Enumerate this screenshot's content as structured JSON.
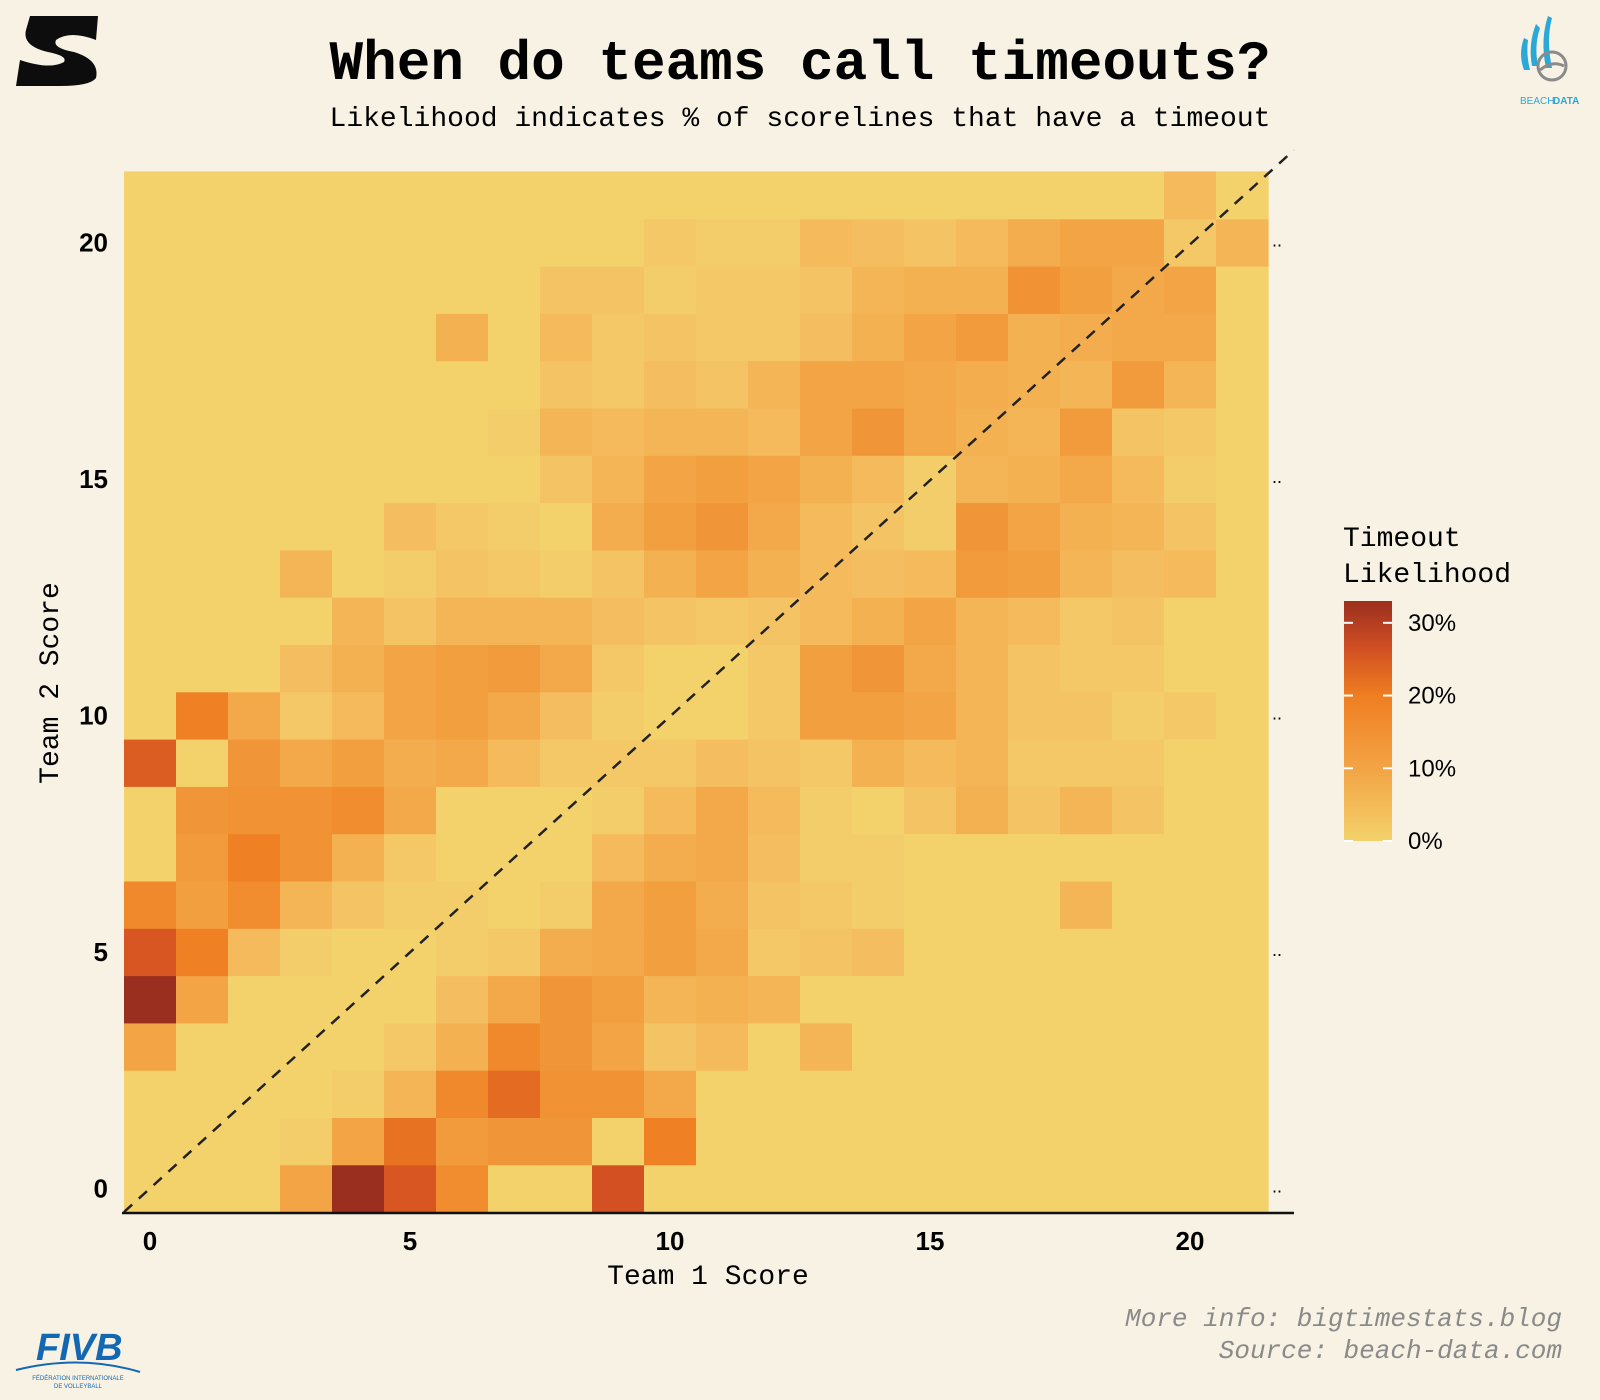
{
  "colors": {
    "background": "#f8f2e4",
    "scale_low": "#f3d26b",
    "scale_mid": "#ef7f22",
    "scale_high": "#9b2f1f",
    "text": "#111111",
    "caption": "#8a8a8a",
    "beach_data_blue": "#2aa8d8",
    "fivb_blue": "#1268b3"
  },
  "title": "When do teams call timeouts?",
  "subtitle": "Likelihood indicates % of scorelines that have a timeout",
  "logos": {
    "top_left": {
      "icon": "s-logo-icon"
    },
    "top_right": {
      "icon": "beach-data-logo-icon",
      "text_1": "BEACH",
      "text_2": "DATA"
    },
    "bottom_left": {
      "icon": "fivb-logo-icon",
      "text": "FIVB",
      "subtext_1": "FÉDÉRATION INTERNATIONALE",
      "subtext_2": "DE VOLLEYBALL"
    }
  },
  "caption": {
    "line1": "More info: bigtimestats.blog",
    "line2": "Source: beach-data.com"
  },
  "chart_data": {
    "type": "heatmap",
    "xlabel": "Team 1 Score",
    "ylabel": "Team 2 Score",
    "x_range": [
      0,
      21
    ],
    "y_range": [
      0,
      21
    ],
    "x_ticks": [
      0,
      5,
      10,
      15,
      20
    ],
    "y_ticks": [
      0,
      5,
      10,
      15,
      20
    ],
    "x_tick_labels": [
      "0",
      "5",
      "10",
      "15",
      "20"
    ],
    "y_tick_labels": [
      "0",
      "5",
      "10",
      "15",
      "20"
    ],
    "reference_line": "dashed diagonal y = x",
    "right_margin_marks": "..",
    "legend": {
      "title_line1": "Timeout",
      "title_line2": "Likelihood",
      "placement": "right",
      "range": [
        0,
        33
      ],
      "ticks": [
        0,
        10,
        20,
        30
      ],
      "tick_labels": [
        "0%",
        "10%",
        "20%",
        "30%"
      ]
    },
    "value_unit": "% of scorelines with a timeout",
    "rows_order": "row index = Team 2 Score (0..21), column index = Team 1 Score (0..21)",
    "values": [
      [
        0,
        0,
        0,
        10,
        33,
        24,
        15,
        0,
        0,
        25,
        0,
        0,
        0,
        0,
        0,
        0,
        0,
        0,
        0,
        0,
        0,
        0
      ],
      [
        0,
        0,
        0,
        1,
        10,
        20,
        12,
        13,
        13,
        0,
        18,
        0,
        0,
        0,
        0,
        0,
        0,
        0,
        0,
        0,
        0,
        0
      ],
      [
        0,
        0,
        0,
        0,
        1,
        6,
        16,
        21,
        14,
        14,
        9,
        0,
        0,
        0,
        0,
        0,
        0,
        0,
        0,
        0,
        0,
        0
      ],
      [
        10,
        0,
        0,
        0,
        0,
        2,
        7,
        16,
        13,
        10,
        3,
        5,
        0,
        6,
        0,
        0,
        0,
        0,
        0,
        0,
        0,
        0
      ],
      [
        33,
        10,
        0,
        0,
        0,
        0,
        4,
        9,
        13,
        11,
        6,
        7,
        6,
        0,
        0,
        0,
        0,
        0,
        0,
        0,
        0,
        0
      ],
      [
        24,
        18,
        5,
        1,
        0,
        0,
        1,
        2,
        8,
        9,
        11,
        9,
        2,
        3,
        4,
        0,
        0,
        0,
        0,
        0,
        0,
        0
      ],
      [
        16,
        11,
        15,
        6,
        3,
        1,
        1,
        0,
        1,
        9,
        11,
        8,
        3,
        2,
        1,
        0,
        0,
        0,
        6,
        0,
        0,
        0
      ],
      [
        0,
        12,
        18,
        14,
        7,
        2,
        0,
        0,
        0,
        5,
        8,
        9,
        4,
        1,
        1,
        0,
        0,
        0,
        0,
        0,
        0,
        0
      ],
      [
        0,
        13,
        14,
        14,
        15,
        9,
        0,
        0,
        0,
        1,
        5,
        9,
        5,
        1,
        0,
        3,
        7,
        3,
        6,
        3,
        0,
        0
      ],
      [
        23,
        0,
        13,
        9,
        11,
        8,
        9,
        5,
        2,
        2,
        2,
        4,
        3,
        2,
        7,
        5,
        6,
        2,
        2,
        2,
        0,
        0
      ],
      [
        0,
        18,
        9,
        2,
        5,
        10,
        11,
        9,
        4,
        1,
        0,
        0,
        2,
        11,
        11,
        10,
        6,
        3,
        3,
        1,
        2,
        0
      ],
      [
        0,
        0,
        0,
        4,
        7,
        10,
        11,
        12,
        9,
        2,
        0,
        0,
        2,
        11,
        13,
        9,
        6,
        3,
        2,
        2,
        0,
        0
      ],
      [
        0,
        0,
        0,
        0,
        6,
        3,
        6,
        6,
        6,
        4,
        3,
        2,
        3,
        5,
        7,
        10,
        6,
        5,
        2,
        3,
        0,
        0
      ],
      [
        0,
        0,
        0,
        6,
        0,
        1,
        3,
        2,
        1,
        3,
        7,
        10,
        7,
        5,
        4,
        5,
        12,
        11,
        6,
        4,
        5,
        0
      ],
      [
        0,
        0,
        0,
        0,
        0,
        4,
        2,
        1,
        0,
        8,
        11,
        13,
        9,
        5,
        3,
        1,
        13,
        10,
        7,
        6,
        3,
        0
      ],
      [
        0,
        0,
        0,
        0,
        0,
        0,
        0,
        0,
        3,
        6,
        10,
        11,
        10,
        7,
        5,
        1,
        6,
        7,
        9,
        5,
        1,
        0
      ],
      [
        0,
        0,
        0,
        0,
        0,
        0,
        0,
        1,
        6,
        5,
        6,
        6,
        5,
        10,
        13,
        9,
        7,
        6,
        12,
        3,
        2,
        0
      ],
      [
        0,
        0,
        0,
        0,
        0,
        0,
        0,
        0,
        3,
        2,
        4,
        3,
        6,
        10,
        10,
        9,
        8,
        7,
        6,
        12,
        6,
        0
      ],
      [
        0,
        0,
        0,
        0,
        0,
        0,
        7,
        0,
        5,
        2,
        3,
        2,
        2,
        4,
        7,
        10,
        12,
        7,
        8,
        9,
        9,
        0
      ],
      [
        0,
        0,
        0,
        0,
        0,
        0,
        0,
        0,
        3,
        3,
        1,
        2,
        2,
        3,
        6,
        7,
        7,
        14,
        11,
        9,
        10,
        0
      ],
      [
        0,
        0,
        0,
        0,
        0,
        0,
        0,
        0,
        0,
        0,
        2,
        1,
        1,
        5,
        4,
        3,
        5,
        8,
        10,
        10,
        2,
        6
      ],
      [
        0,
        0,
        0,
        0,
        0,
        0,
        0,
        0,
        0,
        0,
        0,
        0,
        0,
        0,
        0,
        0,
        0,
        0,
        0,
        0,
        5,
        0
      ]
    ]
  }
}
